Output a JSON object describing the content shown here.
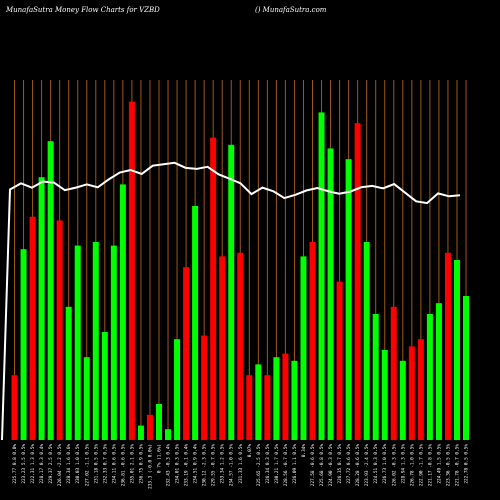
{
  "header": {
    "left": "MunafaSutra  Money Flow  Charts for VZBD",
    "right": "() MunafaSutra.com"
  },
  "chart_data": {
    "type": "bar",
    "title": "MunafaSutra  Money Flow  Charts for VZBD",
    "colors": {
      "up": "#00ff00",
      "down": "#ff0000",
      "line": "#ffffff",
      "grid": "#a0581a",
      "background": "#000000"
    },
    "categories": [
      "225.77 0.8 0.0%",
      "223.23 5.5 0.5%",
      "222.31 1.3 0.5%",
      "228.17 0.3 0.4%",
      "229.37 2.5 0.5%",
      "226.04 -2.2 0.5%",
      "228.34 1.6 0.6%",
      "230.03 1.0 0.5%",
      "227.02 -1.1 0.5%",
      "231.18 0.5 0.5%",
      "232.33 0.7 0.5%",
      "234.11 0.6 0.5%",
      "236.81 -0.6 0.5%",
      "235.01 2.1 0.5%",
      "236.75 0.9 0.5%",
      "233.3 (-0.0 0.0%)",
      "0 7% (1.6%)",
      "232.43 -0.3 0.4%",
      "234.01 0.3 0.5%",
      "233.19 -0.1 0.4%",
      "234.51 0.9 0.4%",
      "230.12 -2.3 0.5%",
      "229.55 -0.7 0.5%",
      "233.34 1.2 0.5%",
      "234.57 -1.0 0.5%",
      "231.33 1.6 0.5%",
      "0.07%",
      "225.65 -2.5 0.5%",
      "226.34 0.3 0.5%",
      "230.21 1.7 0.5%",
      "228.56 -0.7 0.5%",
      "226.09 1.1 0.5%",
      "0.34%",
      "227.58 -0.6 0.5%",
      "225.68 -0.8 0.5%",
      "224.90 -0.3 0.5%",
      "226.35 0.7 0.5%",
      "227.72 0.6 0.5%",
      "228.28 -0.6 0.5%",
      "223.93 -2.4 0.5%",
      "224.51 0.3 0.5%",
      "226.73 1.0 0.5%",
      "226.02 -0.3 0.5%",
      "228.94 1.3 0.5%",
      "226.78 -1.0 0.5%",
      "222.90 -1.7 0.5%",
      "221.17 -0.8 0.5%",
      "224.49 1.5 0.5%",
      "223.36 -0.5 0.5%",
      "221.78 -0.7 0.5%",
      "222.78 0.5 0.5%"
    ],
    "directions": [
      "down",
      "up",
      "down",
      "up",
      "up",
      "down",
      "up",
      "up",
      "up",
      "up",
      "up",
      "up",
      "up",
      "down",
      "up",
      "down",
      "up",
      "up",
      "up",
      "down",
      "up",
      "down",
      "down",
      "down",
      "up",
      "down",
      "down",
      "up",
      "down",
      "up",
      "down",
      "up",
      "up",
      "down",
      "up",
      "up",
      "down",
      "up",
      "down",
      "up",
      "up",
      "up",
      "down",
      "up",
      "down",
      "down",
      "up",
      "up",
      "down",
      "up",
      "up"
    ],
    "values": [
      18,
      53,
      62,
      73,
      83,
      61,
      37,
      54,
      23,
      55,
      30,
      54,
      71,
      94,
      4,
      7,
      10,
      3,
      28,
      48,
      65,
      29,
      84,
      51,
      82,
      52,
      18,
      21,
      18,
      23,
      24,
      22,
      51,
      55,
      91,
      81,
      44,
      78,
      88,
      55,
      35,
      25,
      37,
      22,
      26,
      28,
      35,
      38,
      52,
      50,
      40
    ],
    "ylim": [
      0,
      100
    ],
    "line_values": [
      69.6,
      71.3,
      70.1,
      71.8,
      71.5,
      69.4,
      70.1,
      71.0,
      70.2,
      72.4,
      74.3,
      75.0,
      73.9,
      76.2,
      76.6,
      77.0,
      75.6,
      75.3,
      75.9,
      73.8,
      72.6,
      71.3,
      68.3,
      70.1,
      69.1,
      67.2,
      68.1,
      69.3,
      70.0,
      69.1,
      68.4,
      69.0,
      70.2,
      70.6,
      69.9,
      71.1,
      68.7,
      66.3,
      65.8,
      68.5,
      67.7,
      68.0
    ]
  }
}
